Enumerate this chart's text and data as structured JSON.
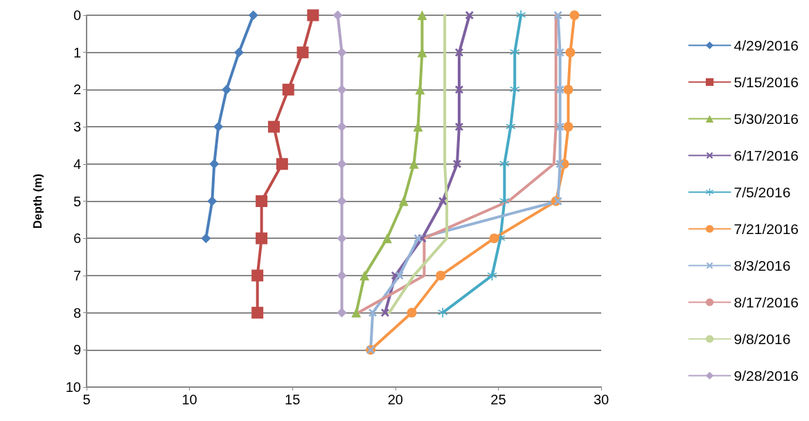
{
  "chart_data": {
    "type": "line",
    "ylabel": "Depth (m)",
    "xlim": [
      5,
      30
    ],
    "xticks": [
      5,
      10,
      15,
      20,
      25,
      30
    ],
    "ylim": [
      10,
      0
    ],
    "yticks": [
      0,
      1,
      2,
      3,
      4,
      5,
      6,
      7,
      8,
      9,
      10
    ],
    "grid": "y",
    "legend": "right",
    "line_style": "solid",
    "series": [
      {
        "name": "4/29/2016",
        "color": "#4a7ebb",
        "marker": "diamond",
        "x": [
          13.1,
          12.4,
          11.8,
          11.4,
          11.2,
          11.1,
          10.8
        ],
        "values": [
          0,
          1,
          2,
          3,
          4,
          5,
          6
        ]
      },
      {
        "name": "5/15/2016",
        "color": "#be4b48",
        "marker": "square",
        "x": [
          16.0,
          15.5,
          14.8,
          14.1,
          14.5,
          13.5,
          13.5,
          13.3,
          13.3
        ],
        "values": [
          0,
          1,
          2,
          3,
          4,
          5,
          6,
          7,
          8
        ]
      },
      {
        "name": "5/30/2016",
        "color": "#98b954",
        "marker": "triangle",
        "x": [
          21.3,
          21.3,
          21.2,
          21.1,
          20.9,
          20.4,
          19.6,
          18.5,
          18.1
        ],
        "values": [
          0,
          1,
          2,
          3,
          4,
          5,
          6,
          7,
          8
        ]
      },
      {
        "name": "6/17/2016",
        "color": "#7d60a0",
        "marker": "cross",
        "x": [
          23.6,
          23.1,
          23.1,
          23.1,
          23.0,
          22.3,
          21.3,
          20.0,
          19.5
        ],
        "values": [
          0,
          1,
          2,
          3,
          4,
          5,
          6,
          7,
          8
        ]
      },
      {
        "name": "7/5/2016",
        "color": "#46aac5",
        "marker": "star",
        "x": [
          26.1,
          25.8,
          25.8,
          25.6,
          25.3,
          25.3,
          25.1,
          24.7,
          22.3
        ],
        "values": [
          0,
          1,
          2,
          3,
          4,
          5,
          6,
          7,
          8
        ]
      },
      {
        "name": "7/21/2016",
        "color": "#f79646",
        "marker": "circle",
        "x": [
          28.7,
          28.5,
          28.4,
          28.4,
          28.2,
          27.8,
          24.8,
          22.2,
          20.8,
          18.8
        ],
        "values": [
          0,
          1,
          2,
          3,
          4,
          5,
          6,
          7,
          8,
          9
        ]
      },
      {
        "name": "8/3/2016",
        "color": "#95b3d7",
        "marker": "cross",
        "x": [
          27.9,
          28.0,
          28.0,
          28.0,
          28.0,
          27.9,
          21.1,
          20.2,
          18.9,
          18.8
        ],
        "values": [
          0,
          1,
          2,
          3,
          4,
          5,
          6,
          7,
          8,
          9
        ]
      },
      {
        "name": "8/17/2016",
        "color": "#d99694",
        "marker": "none",
        "x": [
          27.8,
          27.8,
          27.8,
          27.8,
          27.7,
          25.5,
          21.4,
          21.4,
          18.2
        ],
        "values": [
          0,
          1,
          2,
          3,
          4,
          5,
          6,
          7,
          8
        ]
      },
      {
        "name": "9/8/2016",
        "color": "#c3d69b",
        "marker": "none",
        "x": [
          22.4,
          22.4,
          22.4,
          22.4,
          22.4,
          22.5,
          22.5,
          20.9,
          19.7
        ],
        "values": [
          0,
          1,
          2,
          3,
          4,
          5,
          6,
          7,
          8
        ]
      },
      {
        "name": "9/28/2016",
        "color": "#b3a2c7",
        "marker": "diamond",
        "x": [
          17.2,
          17.4,
          17.4,
          17.4,
          17.4,
          17.4,
          17.4,
          17.4,
          17.4
        ],
        "values": [
          0,
          1,
          2,
          3,
          4,
          5,
          6,
          7,
          8
        ]
      }
    ]
  }
}
